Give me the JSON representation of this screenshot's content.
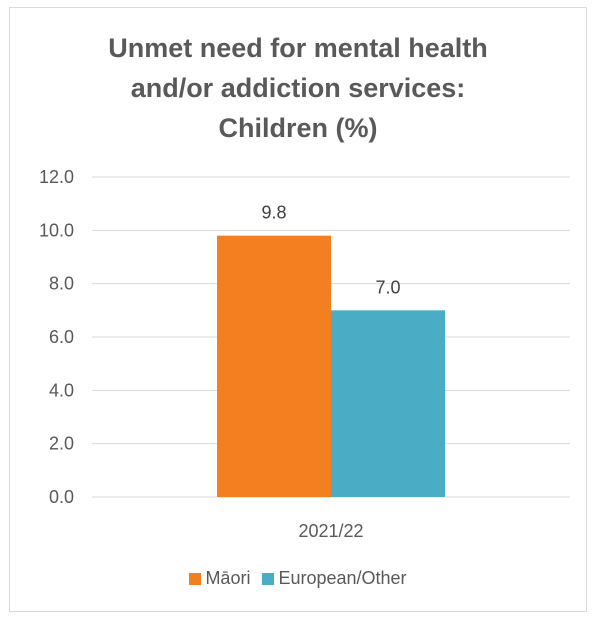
{
  "chart_data": {
    "type": "bar",
    "title_lines": [
      "Unmet need for mental health",
      "and/or addiction services:",
      "Children (%)"
    ],
    "categories": [
      "2021/22"
    ],
    "series": [
      {
        "name": "Māori",
        "values": [
          9.8
        ],
        "labels": [
          "9.8"
        ],
        "color": "#F47F20"
      },
      {
        "name": "European/Other",
        "values": [
          7.0
        ],
        "labels": [
          "7.0"
        ],
        "color": "#4BACC6"
      }
    ],
    "y_ticks": [
      "0.0",
      "2.0",
      "4.0",
      "6.0",
      "8.0",
      "10.0",
      "12.0"
    ],
    "ylim": [
      0,
      12
    ],
    "grid": true,
    "legend_position": "bottom"
  }
}
